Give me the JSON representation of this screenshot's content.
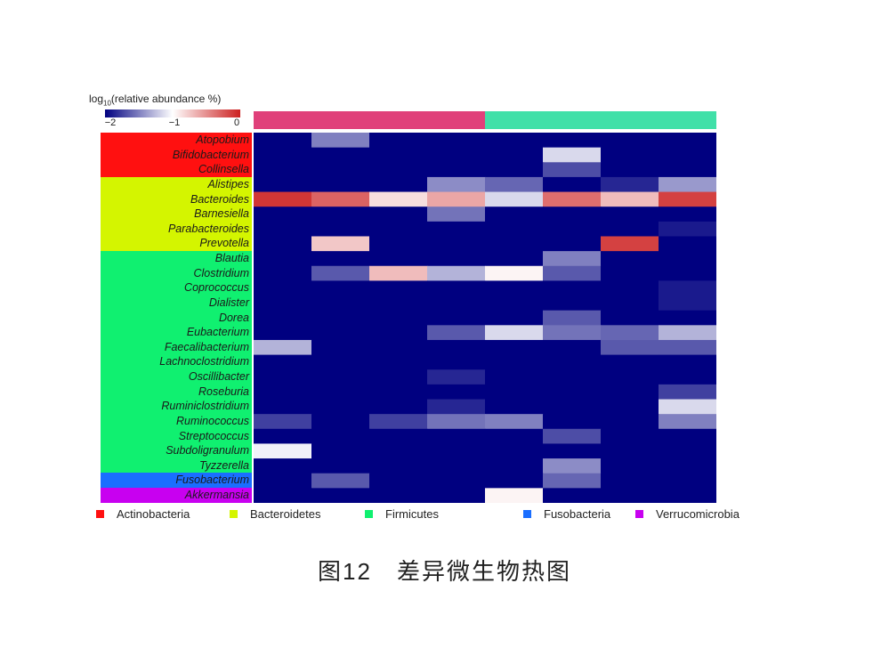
{
  "chart_data": {
    "type": "heatmap",
    "title": "",
    "colorbar": {
      "label_prefix": "log",
      "label_sub": "10",
      "label_suffix": "(relative abundance %)",
      "min": -2,
      "max": 0,
      "ticks": [
        "−2",
        "−1",
        "0"
      ],
      "colors": [
        "#000080",
        "#ffffff",
        "#cc2020"
      ]
    },
    "groups": [
      {
        "color": "#e0407a",
        "columns": 4
      },
      {
        "color": "#40e0a8",
        "columns": 4
      }
    ],
    "phyla": [
      {
        "name": "Actinobacteria",
        "color": "#ff1010"
      },
      {
        "name": "Bacteroidetes",
        "color": "#d4f500"
      },
      {
        "name": "Firmicutes",
        "color": "#10f070"
      },
      {
        "name": "Fusobacteria",
        "color": "#1a6eff"
      },
      {
        "name": "Verrucomicrobia",
        "color": "#c800f0"
      }
    ],
    "rows": [
      {
        "genus": "Atopobium",
        "phylum": 0,
        "values": [
          -2,
          -1.5,
          -2,
          -2,
          -2,
          -2,
          -2,
          -2
        ]
      },
      {
        "genus": "Bifidobacterium",
        "phylum": 0,
        "values": [
          -2,
          -2,
          -2,
          -2,
          -2,
          -1.15,
          -2,
          -2
        ]
      },
      {
        "genus": "Collinsella",
        "phylum": 0,
        "values": [
          -2,
          -2,
          -2,
          -2,
          -2,
          -1.7,
          -2,
          -2
        ]
      },
      {
        "genus": "Alistipes",
        "phylum": 1,
        "values": [
          -2,
          -2,
          -2,
          -1.45,
          -1.6,
          -2,
          -1.85,
          -1.4
        ]
      },
      {
        "genus": "Bacteroides",
        "phylum": 1,
        "values": [
          -0.1,
          -0.3,
          -0.85,
          -0.6,
          -1.15,
          -0.35,
          -0.7,
          -0.15
        ]
      },
      {
        "genus": "Barnesiella",
        "phylum": 1,
        "values": [
          -2,
          -2,
          -2,
          -1.55,
          -2,
          -2,
          -2,
          -2
        ]
      },
      {
        "genus": "Parabacteroides",
        "phylum": 1,
        "values": [
          -2,
          -2,
          -2,
          -2,
          -2,
          -2,
          -2,
          -1.9
        ]
      },
      {
        "genus": "Prevotella",
        "phylum": 1,
        "values": [
          -2,
          -0.75,
          -2,
          -2,
          -2,
          -2,
          -0.15,
          -2
        ]
      },
      {
        "genus": "Blautia",
        "phylum": 2,
        "values": [
          -2,
          -2,
          -2,
          -2,
          -2,
          -1.5,
          -2,
          -2
        ]
      },
      {
        "genus": "Clostridium",
        "phylum": 2,
        "values": [
          -2,
          -1.65,
          -0.7,
          -1.3,
          -0.95,
          -1.65,
          -2,
          -2
        ]
      },
      {
        "genus": "Coprococcus",
        "phylum": 2,
        "values": [
          -2,
          -2,
          -2,
          -2,
          -2,
          -2,
          -2,
          -1.9
        ]
      },
      {
        "genus": "Dialister",
        "phylum": 2,
        "values": [
          -2,
          -2,
          -2,
          -2,
          -2,
          -2,
          -2,
          -1.9
        ]
      },
      {
        "genus": "Dorea",
        "phylum": 2,
        "values": [
          -2,
          -2,
          -2,
          -2,
          -2,
          -1.65,
          -2,
          -2
        ]
      },
      {
        "genus": "Eubacterium",
        "phylum": 2,
        "values": [
          -2,
          -2,
          -2,
          -1.65,
          -1.15,
          -1.55,
          -1.6,
          -1.3
        ]
      },
      {
        "genus": "Faecalibacterium",
        "phylum": 2,
        "values": [
          -1.3,
          -2,
          -2,
          -2,
          -2,
          -2,
          -1.65,
          -1.65
        ]
      },
      {
        "genus": "Lachnoclostridium",
        "phylum": 2,
        "values": [
          -2,
          -2,
          -2,
          -2,
          -2,
          -2,
          -2,
          -2
        ]
      },
      {
        "genus": "Oscillibacter",
        "phylum": 2,
        "values": [
          -2,
          -2,
          -2,
          -1.85,
          -2,
          -2,
          -2,
          -2
        ]
      },
      {
        "genus": "Roseburia",
        "phylum": 2,
        "values": [
          -2,
          -2,
          -2,
          -2,
          -2,
          -2,
          -2,
          -1.75
        ]
      },
      {
        "genus": "Ruminiclostridium",
        "phylum": 2,
        "values": [
          -2,
          -2,
          -2,
          -1.85,
          -2,
          -2,
          -2,
          -1.15
        ]
      },
      {
        "genus": "Ruminococcus",
        "phylum": 2,
        "values": [
          -1.75,
          -2,
          -1.75,
          -1.55,
          -1.5,
          -2,
          -2,
          -1.5
        ]
      },
      {
        "genus": "Streptococcus",
        "phylum": 2,
        "values": [
          -2,
          -2,
          -2,
          -2,
          -2,
          -1.7,
          -2,
          -2
        ]
      },
      {
        "genus": "Subdoligranulum",
        "phylum": 2,
        "values": [
          -1.05,
          -2,
          -2,
          -2,
          -2,
          -2,
          -2,
          -2
        ]
      },
      {
        "genus": "Tyzzerella",
        "phylum": 2,
        "values": [
          -2,
          -2,
          -2,
          -2,
          -2,
          -1.45,
          -2,
          -2
        ]
      },
      {
        "genus": "Fusobacterium",
        "phylum": 3,
        "values": [
          -2,
          -1.65,
          -2,
          -2,
          -2,
          -1.6,
          -2,
          -2
        ]
      },
      {
        "genus": "Akkermansia",
        "phylum": 4,
        "values": [
          -2,
          -2,
          -2,
          -2,
          -0.95,
          -2,
          -2,
          -2
        ]
      }
    ]
  },
  "caption": "图12　差异微生物热图"
}
